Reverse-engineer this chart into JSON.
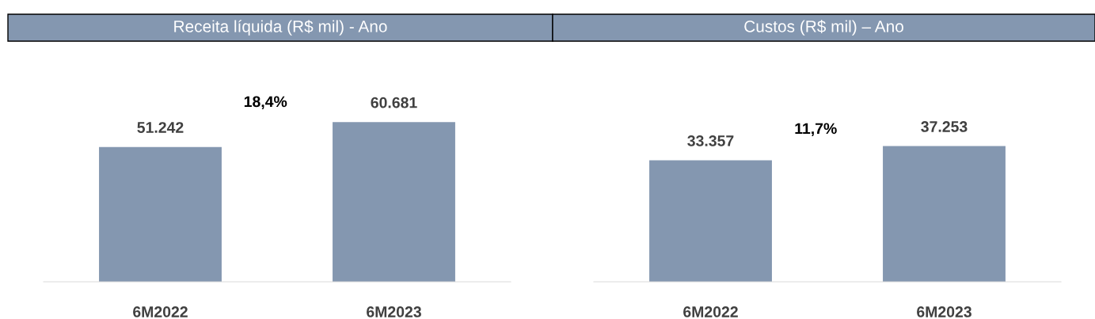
{
  "chart_data": [
    {
      "type": "bar",
      "title": "Receita líquida (R$ mil) - Ano",
      "categories": [
        "6M2022",
        "6M2023"
      ],
      "values": [
        51242,
        60681
      ],
      "value_labels": [
        "51.242",
        "60.681"
      ],
      "color": "#8497b0",
      "annotations": [
        "18,4%"
      ]
    },
    {
      "type": "bar",
      "title": "Custos (R$ mil) – Ano",
      "categories": [
        "6M2022",
        "6M2023"
      ],
      "values": [
        33357,
        37253
      ],
      "value_labels": [
        "33.357",
        "37.253"
      ],
      "color": "#8497b0",
      "annotations": [
        "11,7%"
      ]
    }
  ]
}
